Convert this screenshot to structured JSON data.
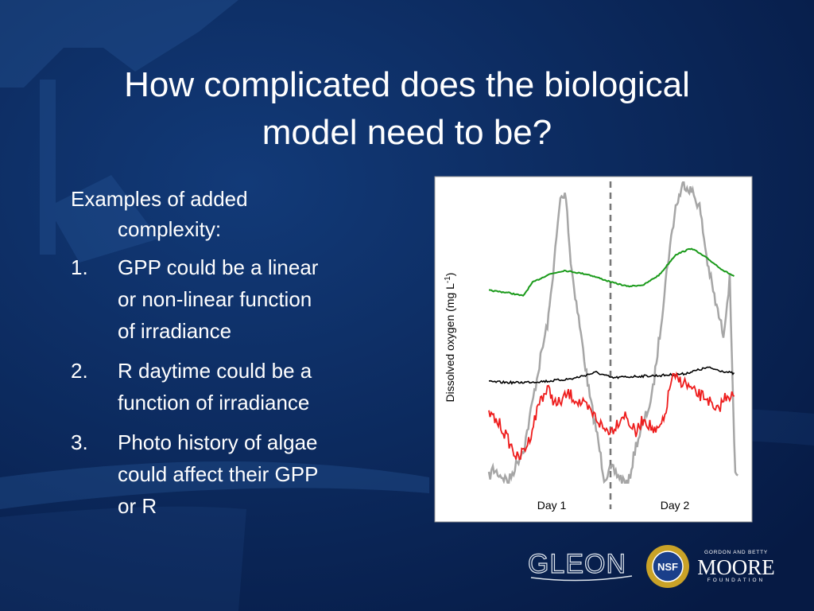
{
  "slide": {
    "title": [
      "How complicated does the biological",
      "model need to be?"
    ],
    "intro": [
      "Examples of added",
      "complexity:"
    ],
    "items": [
      {
        "number": "1.",
        "lines": [
          "GPP could be a linear",
          "or non-linear function",
          "of irradiance"
        ]
      },
      {
        "number": "2.",
        "lines": [
          "R daytime could be a",
          "function of irradiance"
        ]
      },
      {
        "number": "3.",
        "lines": [
          "Photo history of algae",
          "could affect their GPP",
          "or R"
        ]
      }
    ],
    "figure": {
      "y_label": "Dissolved oxygen (mg L",
      "y_label_sup": "-1",
      "y_label_end": ")",
      "x_labels": [
        "Day 1",
        "Day 2"
      ]
    },
    "logos": {
      "gleon": "GLEON",
      "nsf": "NSF",
      "moore_top": "GORDON AND BETTY",
      "moore": "MOORE",
      "moore_bottom": "FOUNDATION"
    }
  }
}
